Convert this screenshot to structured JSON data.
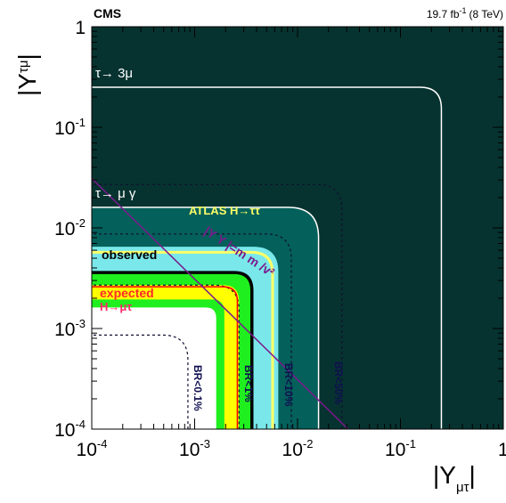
{
  "chart_data": {
    "type": "area",
    "header": {
      "experiment": "CMS",
      "luminosity": "19.7 fb",
      "lumi_sup": "-1",
      "energy": "(8 TeV)"
    },
    "x_axis": {
      "label_main": "|Y",
      "label_sub": "μτ",
      "label_end": "|",
      "scale": "log",
      "range": [
        0.0001,
        1
      ],
      "ticks": [
        {
          "value": 0.0001,
          "base": "10",
          "exp": "-4"
        },
        {
          "value": 0.001,
          "base": "10",
          "exp": "-3"
        },
        {
          "value": 0.01,
          "base": "10",
          "exp": "-2"
        },
        {
          "value": 0.1,
          "base": "10",
          "exp": "-1"
        },
        {
          "value": 1,
          "base": "1",
          "exp": ""
        }
      ]
    },
    "y_axis": {
      "label_main": "|Y",
      "label_sub": "τμ",
      "label_end": "|",
      "scale": "log",
      "range": [
        0.0001,
        1
      ],
      "ticks": [
        {
          "value": 0.0001,
          "base": "10",
          "exp": "-4"
        },
        {
          "value": 0.001,
          "base": "10",
          "exp": "-3"
        },
        {
          "value": 0.01,
          "base": "10",
          "exp": "-2"
        },
        {
          "value": 0.1,
          "base": "10",
          "exp": "-1"
        },
        {
          "value": 1,
          "base": "1",
          "exp": ""
        }
      ]
    },
    "regions": [
      {
        "name": "tau3mu_excluded",
        "label": "τ→ 3μ",
        "bound": 0.25,
        "color": "#06332f"
      },
      {
        "name": "taumugamma_excluded",
        "label": "τ→ μ γ",
        "bound": 0.016,
        "color": "#04605a"
      },
      {
        "name": "atlas",
        "label": "ATLAS H→ττ",
        "bound": 0.0065,
        "color": "#7ae8ea"
      },
      {
        "name": "band_green",
        "bound": 0.0037,
        "color": "#1fef1f"
      },
      {
        "name": "band_yellow",
        "bound": 0.0027,
        "color": "#ffff00"
      }
    ],
    "observed": {
      "label": "observed",
      "bound": 0.0036,
      "color": "#000000"
    },
    "expected": {
      "label": "expected",
      "bound": 0.0026,
      "color": "#ff0000"
    },
    "hmutau_label": "H→μτ",
    "br_contours": [
      {
        "label": "BR<0.1%",
        "bound": 0.00086
      },
      {
        "label": "BR<1%",
        "bound": 0.0027
      },
      {
        "label": "BR<10%",
        "bound": 0.0087
      },
      {
        "label": "BR<50%",
        "bound": 0.027
      }
    ],
    "naturalness_line": {
      "label": "|Y  Y  |=m  m /v²",
      "mtau_mmu_over_v2": 3.1e-06,
      "color": "#7a1a8c"
    }
  }
}
